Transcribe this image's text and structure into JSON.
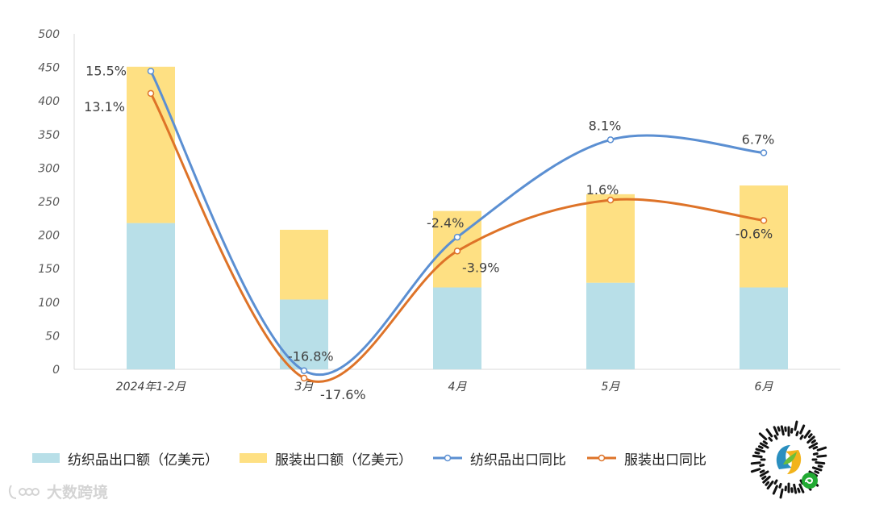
{
  "chart_data": {
    "type": "bar",
    "stacked": true,
    "categories": [
      "2024年1-2月",
      "3月",
      "4月",
      "5月",
      "6月"
    ],
    "ylim": [
      0,
      500
    ],
    "yticks": [
      0,
      50,
      100,
      150,
      200,
      250,
      300,
      350,
      400,
      450,
      500
    ],
    "grid": false,
    "legend_position": "bottom",
    "series": [
      {
        "name": "纺织品出口额（亿美元）",
        "kind": "bar",
        "color": "#b8dfe8",
        "values": [
          218,
          104,
          122,
          129,
          122
        ]
      },
      {
        "name": "服装出口额（亿美元）",
        "kind": "bar",
        "color": "#fee083",
        "values": [
          233,
          104,
          114,
          132,
          152
        ]
      },
      {
        "name": "纺织品出口同比",
        "kind": "line",
        "color": "#5b8fd2",
        "values": [
          15.5,
          -16.8,
          -2.4,
          8.1,
          6.7
        ],
        "labels": [
          "15.5%",
          "-16.8%",
          "-2.4%",
          "8.1%",
          "6.7%"
        ]
      },
      {
        "name": "服装出口同比",
        "kind": "line",
        "color": "#de7328",
        "values": [
          13.1,
          -17.6,
          -3.9,
          1.6,
          -0.6
        ],
        "labels": [
          "13.1%",
          "-17.6%",
          "-3.9%",
          "1.6%",
          "-0.6%"
        ]
      }
    ]
  },
  "watermark": {
    "text": "大数跨境"
  },
  "qr_icon": "mini-program-code-icon"
}
